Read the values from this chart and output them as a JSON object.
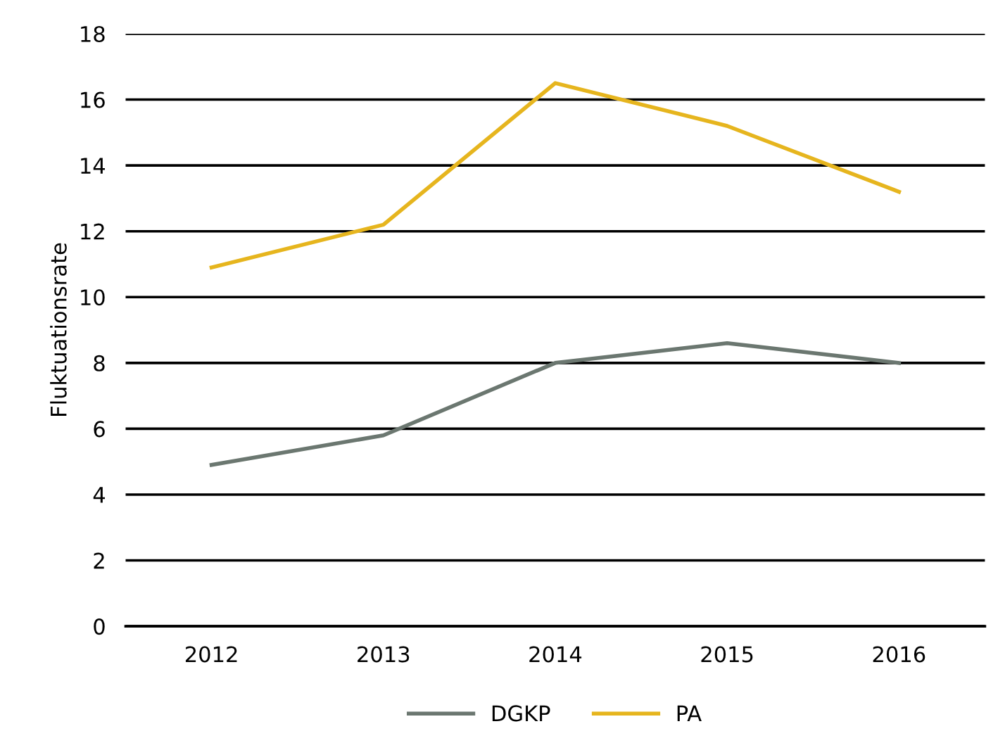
{
  "chart_data": {
    "type": "line",
    "ylabel": "Fluktuationsrate",
    "categories": [
      "2012",
      "2013",
      "2014",
      "2015",
      "2016"
    ],
    "series": [
      {
        "name": "DGKP",
        "color": "#6b7770",
        "values": [
          4.9,
          5.8,
          8.0,
          8.6,
          8.0
        ]
      },
      {
        "name": "PA",
        "color": "#e6b51e",
        "values": [
          10.9,
          12.2,
          16.5,
          15.2,
          13.2
        ]
      }
    ],
    "ylim": [
      0,
      18
    ],
    "yticks": [
      0,
      2,
      4,
      6,
      8,
      10,
      12,
      14,
      16,
      18
    ],
    "grid": "y",
    "legend": "bottom",
    "marker": "none",
    "line_style": "solid"
  }
}
